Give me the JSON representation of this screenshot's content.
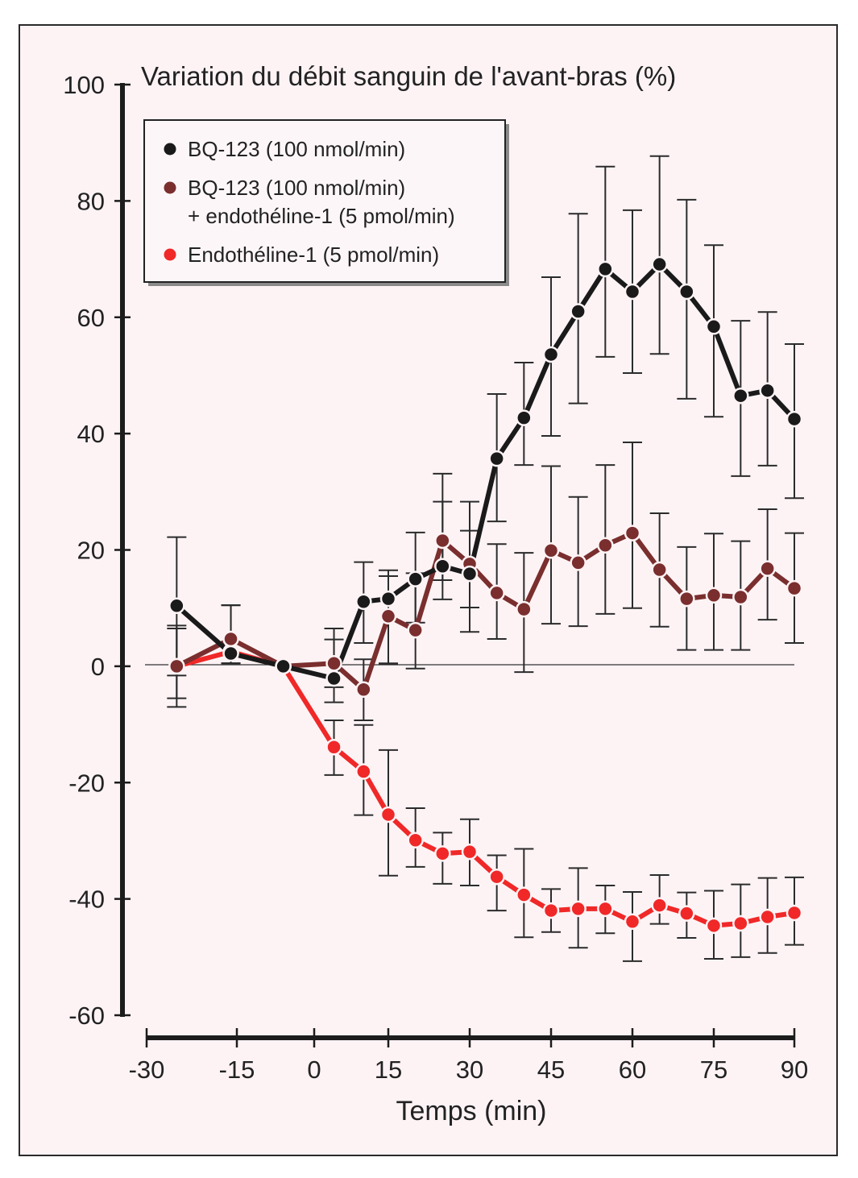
{
  "chart_data": {
    "type": "line",
    "title": "Variation du débit sanguin de l'avant-bras (%)",
    "xlabel": "Temps (min)",
    "ylabel": "Variation du débit sanguin de l'avant-bras (%)",
    "xlim": [
      -30,
      90
    ],
    "ylim": [
      -60,
      100
    ],
    "x_ticks": [
      -30,
      -15,
      0,
      15,
      30,
      45,
      60,
      75,
      90
    ],
    "x_tick_labels": [
      "-30",
      "-15",
      "0",
      "15",
      "30",
      "45",
      "60",
      "75",
      "90"
    ],
    "y_ticks": [
      100,
      80,
      60,
      40,
      20,
      0,
      -20,
      -40,
      -60
    ],
    "y_tick_labels": [
      "100",
      "80",
      "60",
      "40",
      "20",
      "0",
      "-20",
      "-40",
      "-60"
    ],
    "grid": false,
    "zero_reference_line": true,
    "legend_position": "top-left",
    "x": [
      -25,
      -16,
      -6,
      4,
      10,
      15,
      20,
      25,
      30,
      35,
      40,
      45,
      50,
      55,
      60,
      65,
      70,
      75,
      80,
      85,
      90
    ],
    "series": [
      {
        "name": "BQ-123 (100 nmol/min)",
        "legend_lines": [
          "BQ-123 (100 nmol/min)"
        ],
        "color": "#1a1a1a",
        "values": [
          10.4,
          2.2,
          0,
          -2.1,
          11.1,
          11.6,
          15.0,
          17.2,
          15.9,
          35.7,
          42.7,
          53.6,
          61.0,
          68.3,
          64.4,
          69.1,
          64.4,
          58.4,
          46.5,
          47.4,
          42.5
        ],
        "err_upper": [
          22.2,
          10.5,
          0,
          6.5,
          17.9,
          16.5,
          23.0,
          28.3,
          23.3,
          46.8,
          52.2,
          66.9,
          77.8,
          85.9,
          78.4,
          87.7,
          80.2,
          72.4,
          59.4,
          60.9,
          55.4
        ],
        "err_lower": [
          -1.6,
          0.5,
          0,
          -6.2,
          4.0,
          0.4,
          7.5,
          11.5,
          5.9,
          24.9,
          34.6,
          39.6,
          45.2,
          53.2,
          50.4,
          53.7,
          46.0,
          42.9,
          32.7,
          34.5,
          28.9
        ]
      },
      {
        "name": "BQ-123 (100 nmol/min) + endothéline-1 (5 pmol/min)",
        "legend_lines": [
          "BQ-123 (100 nmol/min)",
          "+ endothéline-1 (5 pmol/min)"
        ],
        "color": "#7a2e2e",
        "values": [
          0,
          4.7,
          0,
          0.5,
          -4.0,
          8.6,
          6.2,
          21.6,
          17.6,
          12.6,
          9.8,
          19.9,
          17.8,
          20.8,
          22.9,
          16.6,
          11.6,
          12.2,
          11.9,
          16.8,
          13.4
        ],
        "err_upper": [
          7.0,
          10.5,
          0,
          4.6,
          1.2,
          15.5,
          16.0,
          33.1,
          28.3,
          21.0,
          19.5,
          34.4,
          29.1,
          34.6,
          38.5,
          26.3,
          20.5,
          22.8,
          21.5,
          27.0,
          22.9
        ],
        "err_lower": [
          -7.0,
          0.5,
          0,
          -3.6,
          -9.3,
          0.5,
          -0.4,
          14.8,
          10.1,
          4.7,
          -1.0,
          7.3,
          6.9,
          9.0,
          10.0,
          6.8,
          2.8,
          2.8,
          2.8,
          8.0,
          4.0
        ]
      },
      {
        "name": "Endothéline-1 (5 pmol/min)",
        "legend_lines": [
          "Endothéline-1 (5 pmol/min)"
        ],
        "color": "#f02828",
        "values": [
          0,
          2.5,
          0,
          -13.9,
          -18.1,
          -25.5,
          -29.9,
          -32.2,
          -31.9,
          -36.2,
          -39.3,
          -42.0,
          -41.7,
          -41.7,
          -43.9,
          -41.1,
          -42.5,
          -44.6,
          -44.2,
          -43.1,
          -42.4
        ],
        "err_upper": [
          6.5,
          10.5,
          0,
          -9.3,
          -10.1,
          -14.4,
          -24.4,
          -28.6,
          -26.3,
          -32.5,
          -31.4,
          -38.3,
          -34.7,
          -37.7,
          -38.8,
          -35.9,
          -38.9,
          -38.6,
          -37.5,
          -36.4,
          -36.3
        ],
        "err_lower": [
          -5.5,
          0.5,
          0,
          -18.7,
          -25.6,
          -36.0,
          -34.5,
          -37.4,
          -37.7,
          -42.0,
          -46.6,
          -45.7,
          -48.4,
          -45.9,
          -50.7,
          -44.3,
          -46.7,
          -50.3,
          -50.0,
          -49.3,
          -47.9
        ]
      }
    ]
  }
}
